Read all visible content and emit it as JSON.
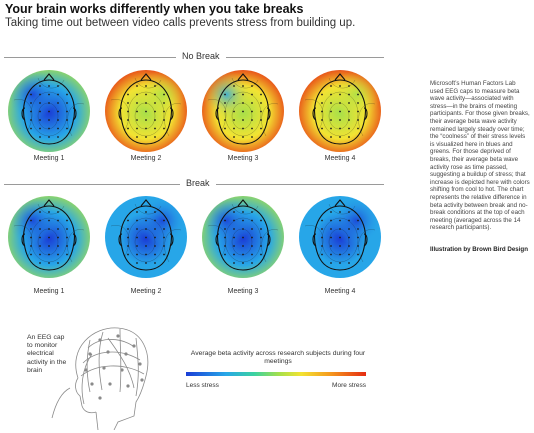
{
  "header": {
    "title": "Your brain works differently when you take breaks",
    "subtitle": "Taking time out between video calls prevents stress from building up."
  },
  "sections": {
    "no_break": {
      "label": "No Break"
    },
    "break": {
      "label": "Break"
    }
  },
  "no_break_meetings": [
    {
      "label": "Meeting 1",
      "stress": 0.2
    },
    {
      "label": "Meeting 2",
      "stress": 0.8
    },
    {
      "label": "Meeting 3",
      "stress": 0.75
    },
    {
      "label": "Meeting 4",
      "stress": 0.82
    }
  ],
  "break_meetings": [
    {
      "label": "Meeting 1",
      "stress": 0.3
    },
    {
      "label": "Meeting 2",
      "stress": 0.12
    },
    {
      "label": "Meeting 3",
      "stress": 0.2
    },
    {
      "label": "Meeting 4",
      "stress": 0.08
    }
  ],
  "description": "Microsoft’s Human Factors Lab used EEG caps to measure beta wave activity—associated with stress—in the brains of meeting participants. For those given breaks, their average beta wave activity remained largely steady over time; the “coolness” of their stress levels is visualized here in blues and greens. For those deprived of breaks, their average beta wave activity rose as time passed, suggesting a buildup of stress; that increase is depicted here with colors shifting from cool to hot. The chart represents the relative difference in beta activity between break and no-break conditions at the top of each meeting (averaged across the 14 research participants).",
  "credit": "Illustration by Brown Bird Design",
  "eeg_caption": "An EEG cap to monitor electrical activity in the brain",
  "legend": {
    "caption": "Average beta activity across research subjects during four meetings",
    "low_label": "Less stress",
    "high_label": "More stress"
  },
  "colors": {
    "cold": "#1a3dd6",
    "cool": "#27a6e8",
    "neutral": "#a7e04a",
    "warm": "#f3e332",
    "hot": "#e52b12"
  }
}
